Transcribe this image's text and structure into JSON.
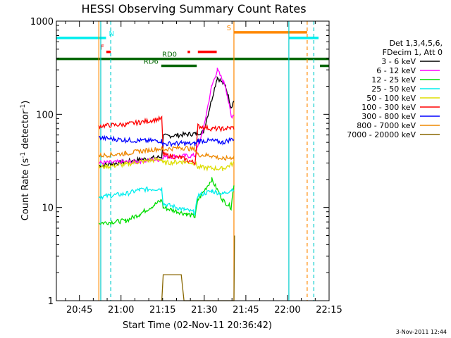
{
  "chart_data": {
    "type": "line",
    "title": "HESSI Observing Summary Count Rates",
    "xlabel": "Start Time (02-Nov-11 20:36:42)",
    "ylabel_main": "Count Rate (s",
    "ylabel_sup": "-1",
    "ylabel_mid": " detector",
    "ylabel_sup2": "-1",
    "ylabel_end": ")",
    "y_scale": "log",
    "ylim": [
      1,
      1000
    ],
    "y_ticks": [
      "1",
      "10",
      "100",
      "1000"
    ],
    "x_range_minutes": [
      0,
      98.3
    ],
    "x_ticks": [
      "20:45",
      "21:00",
      "21:15",
      "21:30",
      "21:45",
      "22:00",
      "22:15"
    ],
    "x_tick_minutes": [
      8.3,
      23.3,
      38.3,
      53.3,
      68.3,
      83.3,
      98.3
    ],
    "legend_header": [
      "Det 1,3,4,5,6,",
      "FDecim 1, Att 0"
    ],
    "series": [
      {
        "name": "3 - 6 keV",
        "color": "#000000",
        "points": [
          [
            15.3,
            28
          ],
          [
            28,
            32
          ],
          [
            38,
            35
          ],
          [
            38.5,
            58
          ],
          [
            50,
            62
          ],
          [
            53,
            65
          ],
          [
            55,
            110
          ],
          [
            58,
            250
          ],
          [
            61,
            200
          ],
          [
            63,
            120
          ],
          [
            64,
            140
          ]
        ]
      },
      {
        "name": "6 - 12 keV",
        "color": "#ff00ff",
        "points": [
          [
            15.3,
            30
          ],
          [
            28,
            31
          ],
          [
            38,
            33
          ],
          [
            38.5,
            35
          ],
          [
            50,
            36
          ],
          [
            53,
            70
          ],
          [
            56,
            200
          ],
          [
            58,
            300
          ],
          [
            61,
            200
          ],
          [
            63,
            95
          ],
          [
            64,
            100
          ]
        ]
      },
      {
        "name": "12 - 25 keV",
        "color": "#00dd00",
        "points": [
          [
            15.3,
            6.8
          ],
          [
            25,
            7.2
          ],
          [
            30,
            8.5
          ],
          [
            38,
            12
          ],
          [
            38.5,
            10
          ],
          [
            47,
            8.5
          ],
          [
            50,
            8
          ],
          [
            51,
            12
          ],
          [
            56,
            20
          ],
          [
            60,
            12
          ],
          [
            63,
            10
          ],
          [
            64,
            18
          ]
        ]
      },
      {
        "name": "25 - 50 keV",
        "color": "#00eeee",
        "points": [
          [
            15.3,
            13
          ],
          [
            25,
            14
          ],
          [
            30,
            15.5
          ],
          [
            38,
            16
          ],
          [
            38.5,
            11
          ],
          [
            46,
            9.5
          ],
          [
            50,
            8.8
          ],
          [
            51,
            13.5
          ],
          [
            56,
            15
          ],
          [
            60,
            14
          ],
          [
            64,
            16
          ]
        ]
      },
      {
        "name": "50 - 100 keV",
        "color": "#dddd00",
        "points": [
          [
            15.3,
            27
          ],
          [
            25,
            29
          ],
          [
            30,
            31
          ],
          [
            38,
            33
          ],
          [
            38.5,
            30
          ],
          [
            45,
            31
          ],
          [
            50,
            30
          ],
          [
            51,
            27
          ],
          [
            60,
            26
          ],
          [
            64,
            30
          ]
        ]
      },
      {
        "name": "100 - 300 keV",
        "color": "#ff0000",
        "points": [
          [
            15.3,
            75
          ],
          [
            25,
            78
          ],
          [
            30,
            82
          ],
          [
            38,
            90
          ],
          [
            38.5,
            37
          ],
          [
            45,
            34
          ],
          [
            50,
            30
          ],
          [
            51,
            75
          ],
          [
            56,
            70
          ],
          [
            60,
            70
          ],
          [
            64,
            72
          ]
        ]
      },
      {
        "name": "300 - 800 keV",
        "color": "#0000ff",
        "points": [
          [
            15.3,
            56
          ],
          [
            25,
            53
          ],
          [
            30,
            52
          ],
          [
            38,
            52
          ],
          [
            38.5,
            48
          ],
          [
            45,
            49
          ],
          [
            50,
            48
          ],
          [
            51,
            52
          ],
          [
            56,
            52
          ],
          [
            60,
            50
          ],
          [
            64,
            55
          ]
        ]
      },
      {
        "name": "800 - 7000 keV",
        "color": "#ee8800",
        "points": [
          [
            15.3,
            36
          ],
          [
            25,
            38
          ],
          [
            30,
            40
          ],
          [
            38,
            43
          ],
          [
            38.5,
            42
          ],
          [
            45,
            44
          ],
          [
            50,
            42
          ],
          [
            51,
            37
          ],
          [
            56,
            36
          ],
          [
            60,
            33
          ],
          [
            64,
            35
          ]
        ]
      },
      {
        "name": "7000 - 20000 keV",
        "color": "#886600",
        "points": [
          [
            38,
            1
          ],
          [
            38.5,
            1.9
          ],
          [
            45,
            1.9
          ],
          [
            46,
            1
          ],
          [
            64,
            1
          ],
          [
            64.2,
            5
          ]
        ]
      }
    ],
    "vlines": [
      {
        "minute": 15.3,
        "color": "#ff8800",
        "style": "solid"
      },
      {
        "minute": 16.0,
        "color": "#00cccc",
        "style": "solid"
      },
      {
        "minute": 19.6,
        "color": "#00cccc",
        "style": "dashed"
      },
      {
        "minute": 64.0,
        "color": "#ff8800",
        "style": "solid"
      },
      {
        "minute": 83.8,
        "color": "#00cccc",
        "style": "solid"
      },
      {
        "minute": 90.4,
        "color": "#ff8800",
        "style": "dashed"
      },
      {
        "minute": 92.8,
        "color": "#00cccc",
        "style": "dashed"
      }
    ],
    "flag_bars": [
      {
        "label": "N",
        "color": "#00eeee",
        "segments": [
          [
            0,
            17.9
          ],
          [
            83.8,
            94.5
          ]
        ],
        "y_fraction": 0.06
      },
      {
        "label": "S",
        "color": "#ff8800",
        "segments": [
          [
            64.0,
            90.4
          ]
        ],
        "y_fraction": 0.04
      },
      {
        "label": "F",
        "color": "#ff0000",
        "segments": [
          [
            18.0,
            19.6
          ],
          [
            47.3,
            48.2
          ],
          [
            51.0,
            57.8
          ]
        ],
        "y_fraction": 0.11
      },
      {
        "label": "RD0",
        "color": "#006600",
        "segments": [
          [
            0,
            99.0
          ]
        ],
        "y_fraction": 0.135
      },
      {
        "label": "RD6",
        "color": "#006600",
        "segments": [
          [
            37.8,
            50.6
          ],
          [
            95.0,
            99.0
          ]
        ],
        "y_fraction": 0.16
      }
    ],
    "grid": false,
    "legend_position": "right"
  },
  "footer": {
    "date_stamp": "3-Nov-2011 12:44"
  }
}
